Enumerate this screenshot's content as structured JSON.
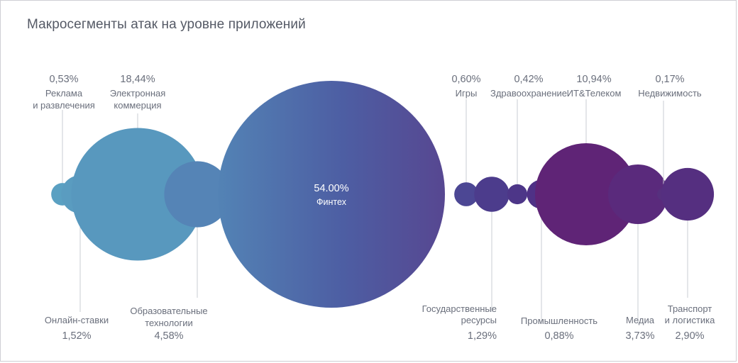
{
  "chart_data": {
    "type": "bubble",
    "title": "Макросегменты атак на уровне приложений",
    "series": [
      {
        "label": [
          "Реклама",
          "и развлечения"
        ],
        "value_text": "0,53%",
        "value": 0.53,
        "color": "#5aa0c2"
      },
      {
        "label": [
          "Онлайн-ставки"
        ],
        "value_text": "1,52%",
        "value": 1.52,
        "color": "#5a9cc0"
      },
      {
        "label": [
          "Электронная",
          "коммерция"
        ],
        "value_text": "18,44%",
        "value": 18.44,
        "color": "#5898be"
      },
      {
        "label": [
          "Образовательные",
          "технологии"
        ],
        "value_text": "4,58%",
        "value": 4.58,
        "color": "#5584b6"
      },
      {
        "label": [
          "Финтех"
        ],
        "value_text": "54.00%",
        "value": 54.0,
        "color": "#4f67a8"
      },
      {
        "label": [
          "Игры"
        ],
        "value_text": "0,60%",
        "value": 0.6,
        "color": "#4c4794"
      },
      {
        "label": [
          "Государственные",
          "ресурсы"
        ],
        "value_text": "1,29%",
        "value": 1.29,
        "color": "#4c3c8c"
      },
      {
        "label": [
          "Здравоохранение"
        ],
        "value_text": "0,42%",
        "value": 0.42,
        "color": "#4d3688"
      },
      {
        "label": [
          "Промышленность"
        ],
        "value_text": "0,88%",
        "value": 0.88,
        "color": "#4f3186"
      },
      {
        "label": [
          "ИТ&Телеком"
        ],
        "value_text": "10,94%",
        "value": 10.94,
        "color": "#5f2476"
      },
      {
        "label": [
          "Медиа"
        ],
        "value_text": "3,73%",
        "value": 3.73,
        "color": "#5a2a7c"
      },
      {
        "label": [
          "Недвижимость"
        ],
        "value_text": "0,17%",
        "value": 0.17,
        "color": "#56307e"
      },
      {
        "label": [
          "Транспорт",
          "и логистика"
        ],
        "value_text": "2,90%",
        "value": 2.9,
        "color": "#552f80"
      }
    ]
  }
}
